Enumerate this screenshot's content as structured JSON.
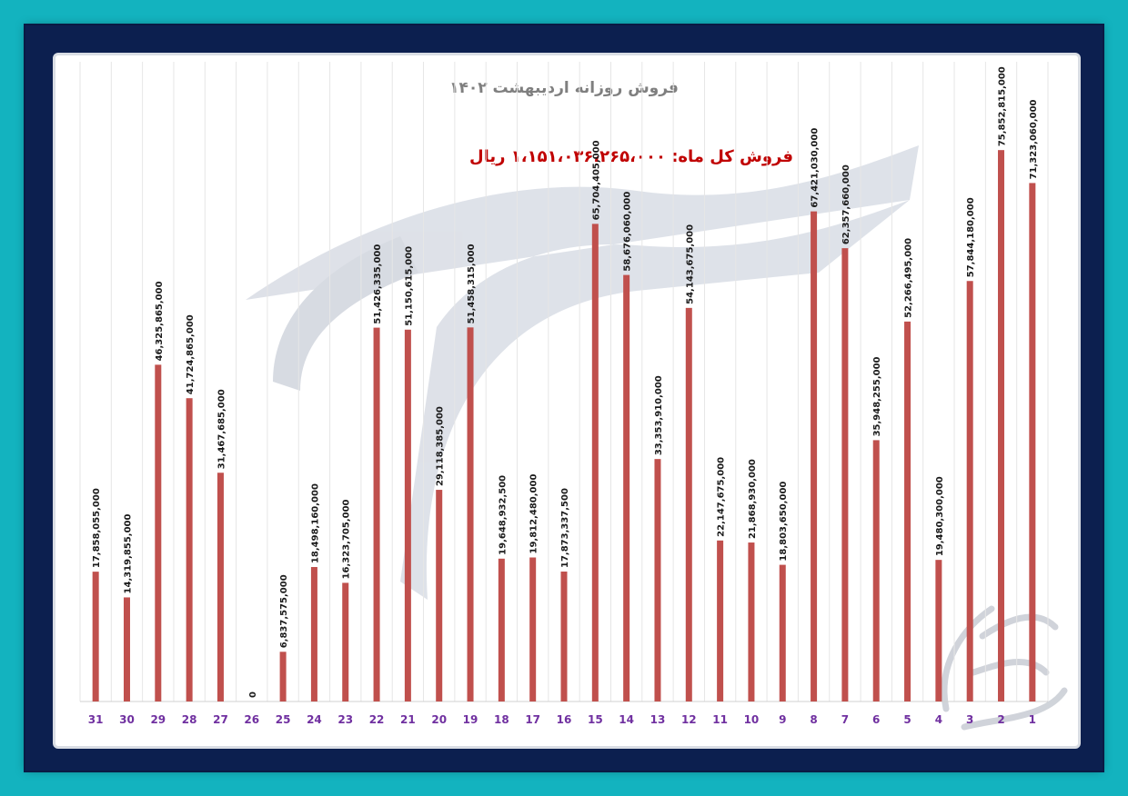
{
  "chart_data": {
    "type": "bar",
    "title": "فروش روزانه اردیبهشت ۱۴۰۲",
    "annotation": "فروش کل ماه: ۱،۱۵۱،۰۳۶،۲۶۵،۰۰۰ ریال",
    "xlabel": "",
    "ylabel": "",
    "ylim": [
      0,
      80000000000
    ],
    "grid": "vertical",
    "legend": "none",
    "colors": {
      "bar": "#c0504d",
      "label": "#1a1a1a",
      "axis_label": "#7030a0",
      "title": "#7f7f7f",
      "annotation": "#c00000"
    },
    "categories": [
      "1",
      "2",
      "3",
      "4",
      "5",
      "6",
      "7",
      "8",
      "9",
      "10",
      "11",
      "12",
      "13",
      "14",
      "15",
      "16",
      "17",
      "18",
      "19",
      "20",
      "21",
      "22",
      "23",
      "24",
      "25",
      "26",
      "27",
      "28",
      "29",
      "30",
      "31"
    ],
    "values": [
      71323060000,
      75852815000,
      57844180000,
      19480300000,
      52266495000,
      35948255000,
      62357660000,
      67421030000,
      18803650000,
      21868930000,
      22147675000,
      54143675000,
      33353910000,
      58676060000,
      65704405000,
      17873337500,
      19812480000,
      19648932500,
      51458315000,
      29118385000,
      51150615000,
      51426335000,
      16323705000,
      18498160000,
      6837575000,
      0,
      31467685000,
      41724865000,
      46325865000,
      14319855000,
      17858055000
    ],
    "data_labels": [
      "71,323,060,000",
      "75,852,815,000",
      "57,844,180,000",
      "19,480,300,000",
      "52,266,495,000",
      "35,948,255,000",
      "62,357,660,000",
      "67,421,030,000",
      "18,803,650,000",
      "21,868,930,000",
      "22,147,675,000",
      "54,143,675,000",
      "33,353,910,000",
      "58,676,060,000",
      "65,704,405,000",
      "17,873,337,500",
      "19,812,480,000",
      "19,648,932,500",
      "51,458,315,000",
      "29,118,385,000",
      "51,150,615,000",
      "51,426,335,000",
      "16,323,705,000",
      "18,498,160,000",
      "6,837,575,000",
      "0",
      "31,467,685,000",
      "41,724,865,000",
      "46,325,865,000",
      "14,319,855,000",
      "17,858,055,000"
    ]
  }
}
